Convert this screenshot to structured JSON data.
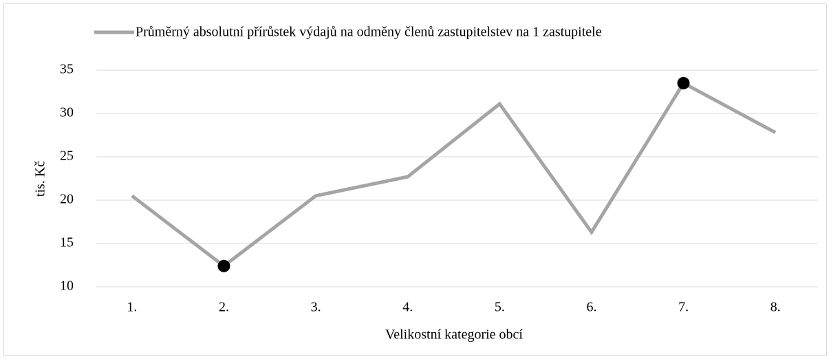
{
  "chart_data": {
    "type": "line",
    "x_label": "Velikostní kategorie obcí",
    "y_label": "tis. Kč",
    "categories": [
      "1.",
      "2.",
      "3.",
      "4.",
      "5.",
      "6.",
      "7.",
      "8."
    ],
    "series": [
      {
        "name": "Průměrný absolutní přírůstek výdajů na odměny členů zastupitelstev na 1 zastupitele",
        "color": "#a5a5a5",
        "values": [
          20.5,
          12.4,
          20.5,
          22.7,
          31.1,
          16.3,
          33.5,
          27.8
        ]
      }
    ],
    "highlighted": [
      1,
      6
    ],
    "marker_color": "#000000",
    "ylim": [
      10,
      35
    ],
    "yticks": [
      10,
      15,
      20,
      25,
      30,
      35
    ],
    "grid": true,
    "legend": "top"
  }
}
